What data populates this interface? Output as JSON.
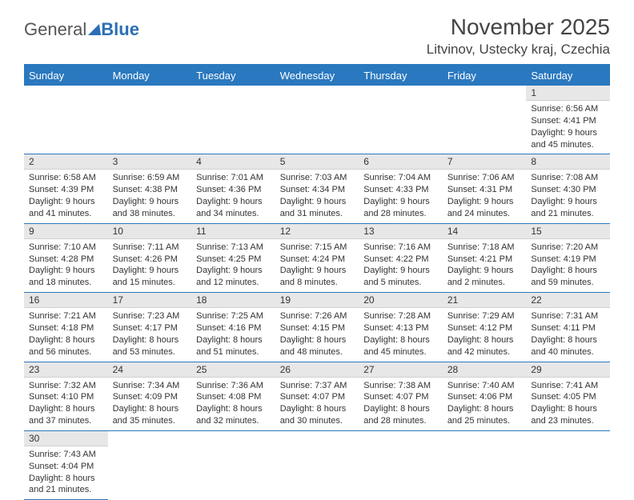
{
  "logo": {
    "text1": "General",
    "text2": "Blue"
  },
  "title": "November 2025",
  "location": "Litvinov, Ustecky kraj, Czechia",
  "columns": [
    "Sunday",
    "Monday",
    "Tuesday",
    "Wednesday",
    "Thursday",
    "Friday",
    "Saturday"
  ],
  "colors": {
    "header_bg": "#2a78bf",
    "header_text": "#ffffff",
    "daynum_bg": "#e7e7e7",
    "border": "#2a78bf"
  },
  "fonts": {
    "title_size": 28,
    "location_size": 17,
    "dayhead_size": 13,
    "cell_size": 11
  },
  "weeks": [
    [
      null,
      null,
      null,
      null,
      null,
      null,
      {
        "n": "1",
        "sunrise": "6:56 AM",
        "sunset": "4:41 PM",
        "dlh": "9",
        "dlm": "45"
      }
    ],
    [
      {
        "n": "2",
        "sunrise": "6:58 AM",
        "sunset": "4:39 PM",
        "dlh": "9",
        "dlm": "41"
      },
      {
        "n": "3",
        "sunrise": "6:59 AM",
        "sunset": "4:38 PM",
        "dlh": "9",
        "dlm": "38"
      },
      {
        "n": "4",
        "sunrise": "7:01 AM",
        "sunset": "4:36 PM",
        "dlh": "9",
        "dlm": "34"
      },
      {
        "n": "5",
        "sunrise": "7:03 AM",
        "sunset": "4:34 PM",
        "dlh": "9",
        "dlm": "31"
      },
      {
        "n": "6",
        "sunrise": "7:04 AM",
        "sunset": "4:33 PM",
        "dlh": "9",
        "dlm": "28"
      },
      {
        "n": "7",
        "sunrise": "7:06 AM",
        "sunset": "4:31 PM",
        "dlh": "9",
        "dlm": "24"
      },
      {
        "n": "8",
        "sunrise": "7:08 AM",
        "sunset": "4:30 PM",
        "dlh": "9",
        "dlm": "21"
      }
    ],
    [
      {
        "n": "9",
        "sunrise": "7:10 AM",
        "sunset": "4:28 PM",
        "dlh": "9",
        "dlm": "18"
      },
      {
        "n": "10",
        "sunrise": "7:11 AM",
        "sunset": "4:26 PM",
        "dlh": "9",
        "dlm": "15"
      },
      {
        "n": "11",
        "sunrise": "7:13 AM",
        "sunset": "4:25 PM",
        "dlh": "9",
        "dlm": "12"
      },
      {
        "n": "12",
        "sunrise": "7:15 AM",
        "sunset": "4:24 PM",
        "dlh": "9",
        "dlm": "8"
      },
      {
        "n": "13",
        "sunrise": "7:16 AM",
        "sunset": "4:22 PM",
        "dlh": "9",
        "dlm": "5"
      },
      {
        "n": "14",
        "sunrise": "7:18 AM",
        "sunset": "4:21 PM",
        "dlh": "9",
        "dlm": "2"
      },
      {
        "n": "15",
        "sunrise": "7:20 AM",
        "sunset": "4:19 PM",
        "dlh": "8",
        "dlm": "59"
      }
    ],
    [
      {
        "n": "16",
        "sunrise": "7:21 AM",
        "sunset": "4:18 PM",
        "dlh": "8",
        "dlm": "56"
      },
      {
        "n": "17",
        "sunrise": "7:23 AM",
        "sunset": "4:17 PM",
        "dlh": "8",
        "dlm": "53"
      },
      {
        "n": "18",
        "sunrise": "7:25 AM",
        "sunset": "4:16 PM",
        "dlh": "8",
        "dlm": "51"
      },
      {
        "n": "19",
        "sunrise": "7:26 AM",
        "sunset": "4:15 PM",
        "dlh": "8",
        "dlm": "48"
      },
      {
        "n": "20",
        "sunrise": "7:28 AM",
        "sunset": "4:13 PM",
        "dlh": "8",
        "dlm": "45"
      },
      {
        "n": "21",
        "sunrise": "7:29 AM",
        "sunset": "4:12 PM",
        "dlh": "8",
        "dlm": "42"
      },
      {
        "n": "22",
        "sunrise": "7:31 AM",
        "sunset": "4:11 PM",
        "dlh": "8",
        "dlm": "40"
      }
    ],
    [
      {
        "n": "23",
        "sunrise": "7:32 AM",
        "sunset": "4:10 PM",
        "dlh": "8",
        "dlm": "37"
      },
      {
        "n": "24",
        "sunrise": "7:34 AM",
        "sunset": "4:09 PM",
        "dlh": "8",
        "dlm": "35"
      },
      {
        "n": "25",
        "sunrise": "7:36 AM",
        "sunset": "4:08 PM",
        "dlh": "8",
        "dlm": "32"
      },
      {
        "n": "26",
        "sunrise": "7:37 AM",
        "sunset": "4:07 PM",
        "dlh": "8",
        "dlm": "30"
      },
      {
        "n": "27",
        "sunrise": "7:38 AM",
        "sunset": "4:07 PM",
        "dlh": "8",
        "dlm": "28"
      },
      {
        "n": "28",
        "sunrise": "7:40 AM",
        "sunset": "4:06 PM",
        "dlh": "8",
        "dlm": "25"
      },
      {
        "n": "29",
        "sunrise": "7:41 AM",
        "sunset": "4:05 PM",
        "dlh": "8",
        "dlm": "23"
      }
    ],
    [
      {
        "n": "30",
        "sunrise": "7:43 AM",
        "sunset": "4:04 PM",
        "dlh": "8",
        "dlm": "21"
      },
      null,
      null,
      null,
      null,
      null,
      null
    ]
  ]
}
